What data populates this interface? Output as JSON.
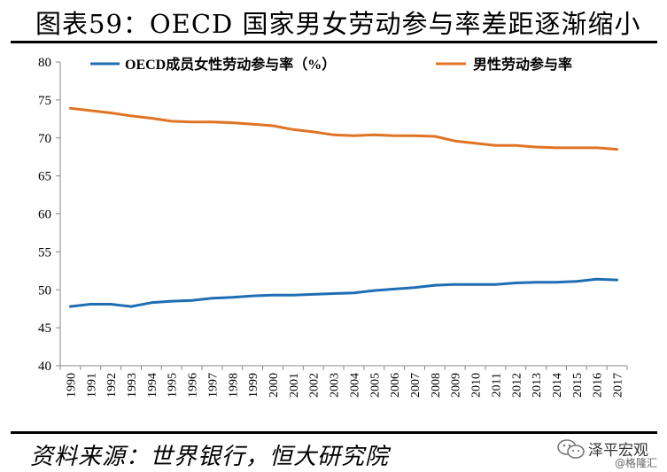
{
  "title": "图表59：OECD 国家男女劳动参与率差距逐渐缩小",
  "source": "资料来源：世界银行，恒大研究院",
  "watermark": {
    "name": "泽平宏观",
    "sub": "@格隆汇"
  },
  "colors": {
    "female": "#1f6db3",
    "male": "#e07424"
  },
  "chart_data": {
    "type": "line",
    "title": "",
    "xlabel": "",
    "ylabel": "",
    "ylim": [
      40,
      80
    ],
    "yticks": [
      40,
      45,
      50,
      55,
      60,
      65,
      70,
      75,
      80
    ],
    "grid": false,
    "legend": "top",
    "x": [
      1990,
      1991,
      1992,
      1993,
      1994,
      1995,
      1996,
      1997,
      1998,
      1999,
      2000,
      2001,
      2002,
      2003,
      2004,
      2005,
      2006,
      2007,
      2008,
      2009,
      2010,
      2011,
      2012,
      2013,
      2014,
      2015,
      2016,
      2017
    ],
    "series": [
      {
        "name": "OECD成员女性劳动参与率（%）",
        "color": "#1f6db3",
        "values": [
          47.8,
          48.1,
          48.1,
          47.8,
          48.3,
          48.5,
          48.6,
          48.9,
          49.0,
          49.2,
          49.3,
          49.3,
          49.4,
          49.5,
          49.6,
          49.9,
          50.1,
          50.3,
          50.6,
          50.7,
          50.7,
          50.7,
          50.9,
          51.0,
          51.0,
          51.1,
          51.4,
          51.3
        ]
      },
      {
        "name": "男性劳动参与率",
        "color": "#e07424",
        "values": [
          73.9,
          73.6,
          73.3,
          72.9,
          72.6,
          72.2,
          72.1,
          72.1,
          72.0,
          71.8,
          71.6,
          71.1,
          70.8,
          70.4,
          70.3,
          70.4,
          70.3,
          70.3,
          70.2,
          69.6,
          69.3,
          69.0,
          69.0,
          68.8,
          68.7,
          68.7,
          68.7,
          68.5
        ]
      }
    ]
  }
}
